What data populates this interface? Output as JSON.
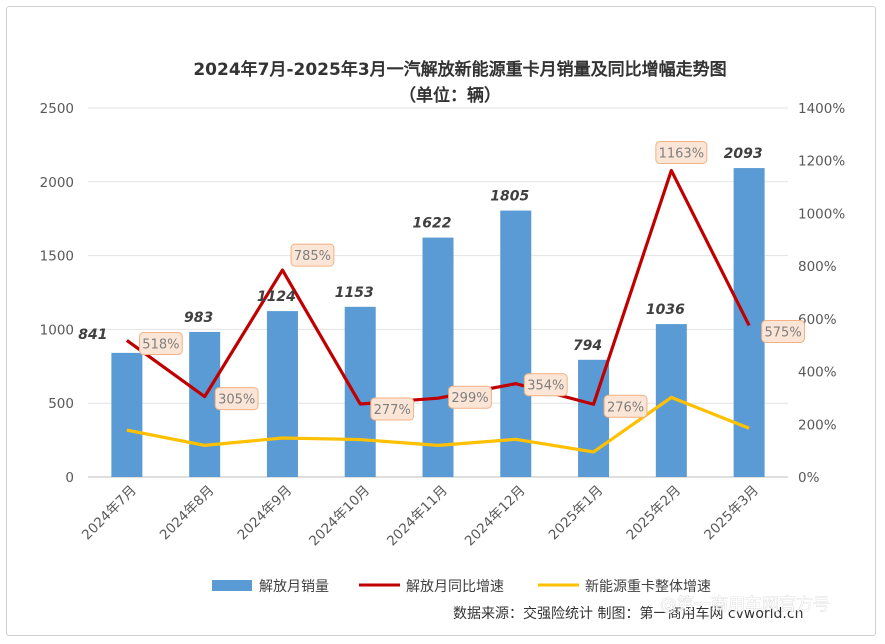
{
  "chart_data": {
    "type": "bar",
    "title": "2024年7月-2025年3月一汽解放新能源重卡月销量及同比增幅走势图",
    "subtitle": "（单位：辆）",
    "categories": [
      "2024年7月",
      "2024年8月",
      "2024年9月",
      "2024年10月",
      "2024年11月",
      "2024年12月",
      "2025年1月",
      "2025年2月",
      "2025年3月"
    ],
    "series": [
      {
        "name": "解放月销量",
        "type": "bar",
        "axis": "left",
        "color": "#5b9bd5",
        "values": [
          841,
          983,
          1124,
          1153,
          1622,
          1805,
          794,
          1036,
          2093
        ],
        "labels": [
          "841",
          "983",
          "1124",
          "1153",
          "1622",
          "1805",
          "794",
          "1036",
          "2093"
        ]
      },
      {
        "name": "解放月同比增速",
        "type": "line",
        "axis": "right",
        "color": "#c00000",
        "values": [
          518,
          305,
          785,
          277,
          299,
          354,
          276,
          1163,
          575
        ],
        "labels": [
          "518%",
          "305%",
          "785%",
          "277%",
          "299%",
          "354%",
          "276%",
          "1163%",
          "575%"
        ]
      },
      {
        "name": "新能源重卡整体增速",
        "type": "line",
        "axis": "right",
        "color": "#ffc000",
        "values": [
          178,
          120,
          148,
          142,
          120,
          143,
          95,
          302,
          185
        ]
      }
    ],
    "y_left": {
      "min": 0,
      "max": 2500,
      "ticks": [
        "0",
        "500",
        "1000",
        "1500",
        "2000",
        "2500"
      ]
    },
    "y_right": {
      "min": 0,
      "max": 1400,
      "ticks": [
        "0%",
        "200%",
        "400%",
        "600%",
        "800%",
        "1000%",
        "1200%",
        "1400%"
      ]
    },
    "grid": true,
    "legend_position": "bottom"
  },
  "source_text": "数据来源：交强险统计 制图：第一商用车网 cvworld.cn",
  "watermark_text": "@第一商用车网官方号"
}
